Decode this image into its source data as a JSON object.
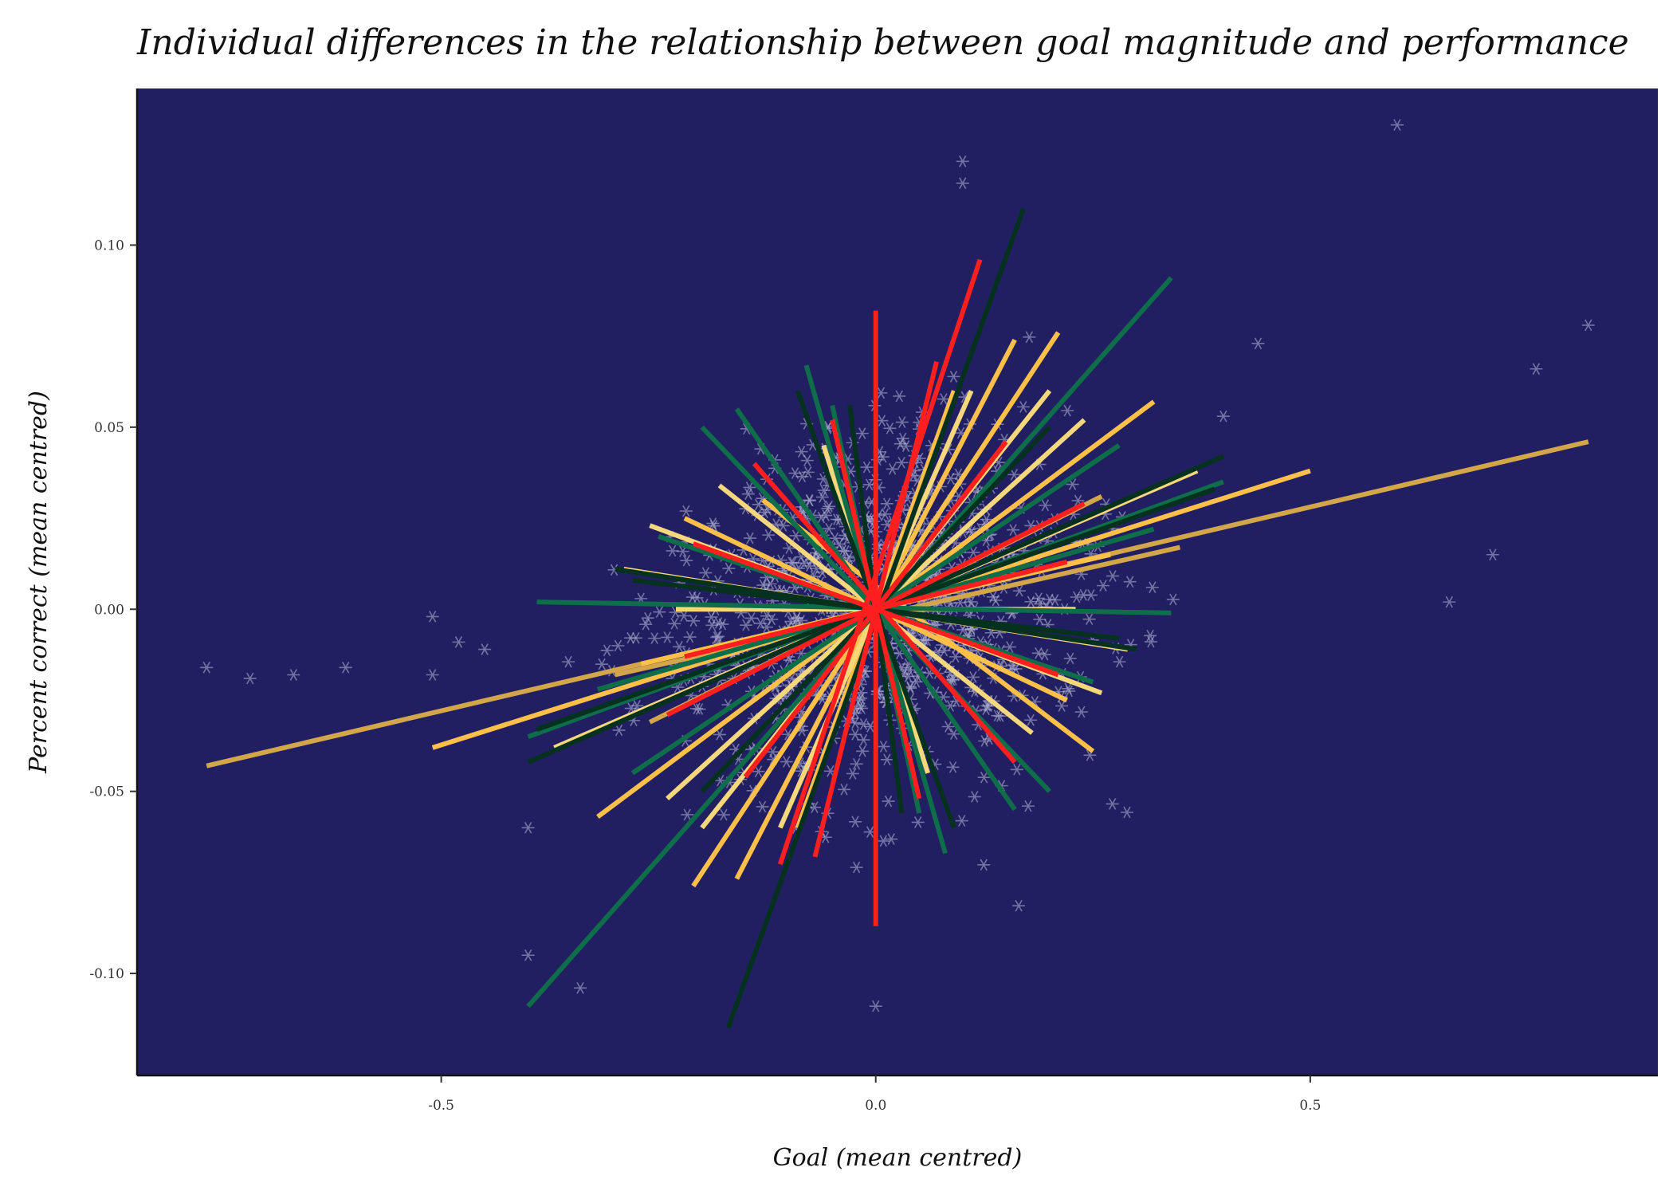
{
  "chart_data": {
    "type": "line",
    "title": "Individual differences in the relationship between goal magnitude and performance",
    "xlabel": "Goal (mean centred)",
    "ylabel": "Percent correct (mean centred)",
    "xlim": [
      -0.85,
      0.9
    ],
    "ylim": [
      -0.128,
      0.143
    ],
    "x_ticks": [
      -0.5,
      0.0,
      0.5
    ],
    "x_tick_labels": [
      "-0.5",
      "0.0",
      "0.5"
    ],
    "y_ticks": [
      -0.1,
      -0.05,
      0.0,
      0.05,
      0.1
    ],
    "y_tick_labels": [
      "-0.10",
      "-0.05",
      "0.00",
      "0.05",
      "0.10"
    ],
    "grid": false,
    "legend": "none",
    "colors": {
      "background": "#211f62",
      "points": "#b9b9d8",
      "palette": [
        "#ff1f1f",
        "#0e6e49",
        "#06311f",
        "#ffc04a",
        "#f5d77c",
        "#d4a64a"
      ]
    },
    "series": [
      {
        "kind": "slope-lines",
        "color": "#d4a64a",
        "segments": [
          [
            -0.77,
            -0.043,
            0.82,
            0.046
          ],
          [
            -0.3,
            -0.018,
            0.35,
            0.017
          ],
          [
            -0.26,
            -0.031,
            0.26,
            0.031
          ]
        ]
      },
      {
        "kind": "slope-lines",
        "color": "#ffc04a",
        "segments": [
          [
            -0.51,
            -0.038,
            0.5,
            0.038
          ],
          [
            -0.32,
            -0.057,
            0.32,
            0.057
          ],
          [
            -0.21,
            -0.076,
            0.21,
            0.076
          ],
          [
            -0.13,
            0.03,
            0.25,
            -0.039
          ],
          [
            -0.22,
            0.025,
            0.22,
            -0.025
          ],
          [
            -0.09,
            -0.06,
            0.09,
            0.06
          ],
          [
            -0.16,
            -0.074,
            0.16,
            0.074
          ],
          [
            -0.27,
            -0.015,
            0.27,
            0.015
          ]
        ]
      },
      {
        "kind": "slope-lines",
        "color": "#f5d77c",
        "segments": [
          [
            -0.24,
            -0.052,
            0.24,
            0.052
          ],
          [
            -0.29,
            0.011,
            0.29,
            -0.011
          ],
          [
            -0.11,
            -0.06,
            0.11,
            0.06
          ],
          [
            -0.37,
            -0.038,
            0.37,
            0.038
          ],
          [
            -0.18,
            0.034,
            0.18,
            -0.034
          ],
          [
            -0.23,
            0.0,
            0.23,
            0.0
          ],
          [
            -0.06,
            0.045,
            0.06,
            -0.045
          ],
          [
            -0.2,
            -0.06,
            0.2,
            0.06
          ],
          [
            -0.26,
            0.023,
            0.26,
            -0.023
          ]
        ]
      },
      {
        "kind": "slope-lines",
        "color": "#0e6e49",
        "segments": [
          [
            -0.4,
            -0.109,
            0.34,
            0.091
          ],
          [
            -0.39,
            0.002,
            0.34,
            -0.001
          ],
          [
            -0.4,
            -0.035,
            0.4,
            0.035
          ],
          [
            -0.28,
            -0.045,
            0.28,
            0.045
          ],
          [
            -0.16,
            0.055,
            0.16,
            -0.055
          ],
          [
            -0.05,
            0.056,
            0.05,
            -0.056
          ],
          [
            -0.08,
            0.067,
            0.08,
            -0.067
          ],
          [
            -0.32,
            -0.022,
            0.32,
            0.022
          ],
          [
            -0.2,
            0.05,
            0.2,
            -0.05
          ],
          [
            -0.25,
            0.02,
            0.25,
            -0.02
          ]
        ]
      },
      {
        "kind": "slope-lines",
        "color": "#06311f",
        "segments": [
          [
            -0.17,
            -0.115,
            0.17,
            0.11
          ],
          [
            -0.39,
            -0.033,
            0.39,
            0.033
          ],
          [
            -0.28,
            0.008,
            0.28,
            -0.008
          ],
          [
            -0.4,
            -0.042,
            0.4,
            0.042
          ],
          [
            -0.09,
            0.06,
            0.09,
            -0.06
          ],
          [
            -0.03,
            0.056,
            0.03,
            -0.056
          ],
          [
            -0.2,
            -0.05,
            0.2,
            0.05
          ],
          [
            -0.3,
            0.011,
            0.3,
            -0.011
          ]
        ]
      },
      {
        "kind": "slope-lines",
        "color": "#ff1f1f",
        "segments": [
          [
            0.0,
            0.082,
            0.0,
            -0.087
          ],
          [
            -0.11,
            -0.07,
            0.12,
            0.096
          ],
          [
            -0.24,
            -0.029,
            0.24,
            0.029
          ],
          [
            -0.14,
            0.04,
            0.16,
            -0.042
          ],
          [
            -0.21,
            0.018,
            0.21,
            -0.018
          ],
          [
            -0.07,
            -0.068,
            0.07,
            0.068
          ],
          [
            -0.05,
            0.052,
            0.05,
            -0.052
          ],
          [
            -0.22,
            -0.013,
            0.22,
            0.013
          ],
          [
            -0.15,
            -0.046,
            0.15,
            0.046
          ]
        ]
      }
    ]
  }
}
